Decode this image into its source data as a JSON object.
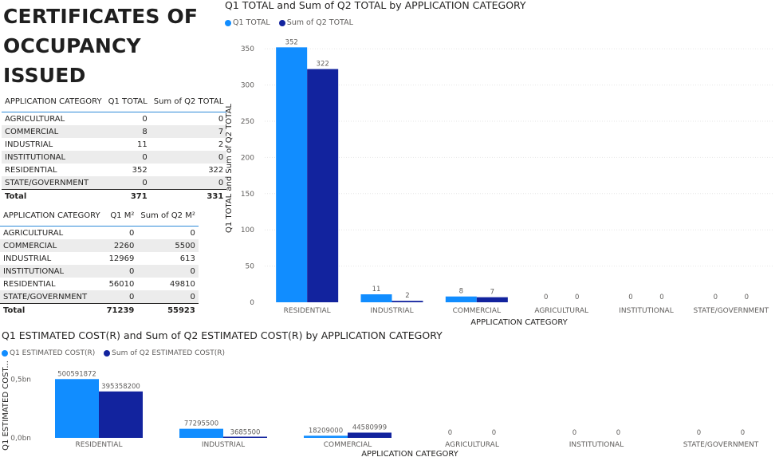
{
  "page": {
    "title_lines": [
      "CERTIFICATES OF",
      "OCCUPANCY",
      "ISSUED"
    ]
  },
  "table_totals": {
    "headers": [
      "APPLICATION CATEGORY",
      "Q1 TOTAL",
      "Sum of Q2 TOTAL"
    ],
    "rows": [
      [
        "AGRICULTURAL",
        "0",
        "0"
      ],
      [
        "COMMERCIAL",
        "8",
        "7"
      ],
      [
        "INDUSTRIAL",
        "11",
        "2"
      ],
      [
        "INSTITUTIONAL",
        "0",
        "0"
      ],
      [
        "RESIDENTIAL",
        "352",
        "322"
      ],
      [
        "STATE/GOVERNMENT",
        "0",
        "0"
      ]
    ],
    "total": [
      "Total",
      "371",
      "331"
    ]
  },
  "table_area": {
    "headers": [
      "APPLICATION CATEGORY",
      "Q1 M²",
      "Sum of Q2 M²"
    ],
    "rows": [
      [
        "AGRICULTURAL",
        "0",
        "0"
      ],
      [
        "COMMERCIAL",
        "2260",
        "5500"
      ],
      [
        "INDUSTRIAL",
        "12969",
        "613"
      ],
      [
        "INSTITUTIONAL",
        "0",
        "0"
      ],
      [
        "RESIDENTIAL",
        "56010",
        "49810"
      ],
      [
        "STATE/GOVERNMENT",
        "0",
        "0"
      ]
    ],
    "total": [
      "Total",
      "71239",
      "55923"
    ]
  },
  "colors": {
    "q1": "#118dff",
    "q2": "#12239e",
    "grid": "#e6e6e6"
  },
  "chart_data": [
    {
      "type": "bar",
      "title": "Q1 TOTAL and Sum of Q2 TOTAL by APPLICATION CATEGORY",
      "xlabel": "APPLICATION CATEGORY",
      "ylabel": "Q1 TOTAL and Sum of Q2 TOTAL",
      "ylim": [
        0,
        370
      ],
      "yticks": [
        0,
        50,
        100,
        150,
        200,
        250,
        300,
        350
      ],
      "ytick_labels": [
        "0",
        "50",
        "100",
        "150",
        "200",
        "250",
        "300",
        "350"
      ],
      "grid": true,
      "legend_position": "top-left",
      "categories": [
        "RESIDENTIAL",
        "INDUSTRIAL",
        "COMMERCIAL",
        "AGRICULTURAL",
        "INSTITUTIONAL",
        "STATE/GOVERNMENT"
      ],
      "series": [
        {
          "name": "Q1 TOTAL",
          "values": [
            352,
            11,
            8,
            0,
            0,
            0
          ],
          "labels": [
            "352",
            "11",
            "8",
            "0",
            "0",
            "0"
          ]
        },
        {
          "name": "Sum of Q2 TOTAL",
          "values": [
            322,
            2,
            7,
            0,
            0,
            0
          ],
          "labels": [
            "322",
            "2",
            "7",
            "0",
            "0",
            "0"
          ]
        }
      ]
    },
    {
      "type": "bar",
      "title": "Q1 ESTIMATED COST(R) and Sum of Q2 ESTIMATED COST(R) by APPLICATION CATEGORY",
      "xlabel": "APPLICATION CATEGORY",
      "ylabel": "Q1 ESTIMATED COST...",
      "ylim": [
        0,
        550000000
      ],
      "yticks": [
        0,
        500000000
      ],
      "ytick_labels": [
        "0,0bn",
        "0,5bn"
      ],
      "grid": false,
      "legend_position": "top-left",
      "categories": [
        "RESIDENTIAL",
        "INDUSTRIAL",
        "COMMERCIAL",
        "AGRICULTURAL",
        "INSTITUTIONAL",
        "STATE/GOVERNMENT"
      ],
      "series": [
        {
          "name": "Q1 ESTIMATED COST(R)",
          "values": [
            500591872,
            77295500,
            18209000,
            0,
            0,
            0
          ],
          "labels": [
            "500591872",
            "77295500",
            "18209000",
            "0",
            "0",
            "0"
          ]
        },
        {
          "name": "Sum of Q2  ESTIMATED COST(R)",
          "values": [
            395358200,
            3685500,
            44580999,
            0,
            0,
            0
          ],
          "labels": [
            "395358200",
            "3685500",
            "44580999",
            "0",
            "0",
            "0"
          ]
        }
      ]
    }
  ]
}
